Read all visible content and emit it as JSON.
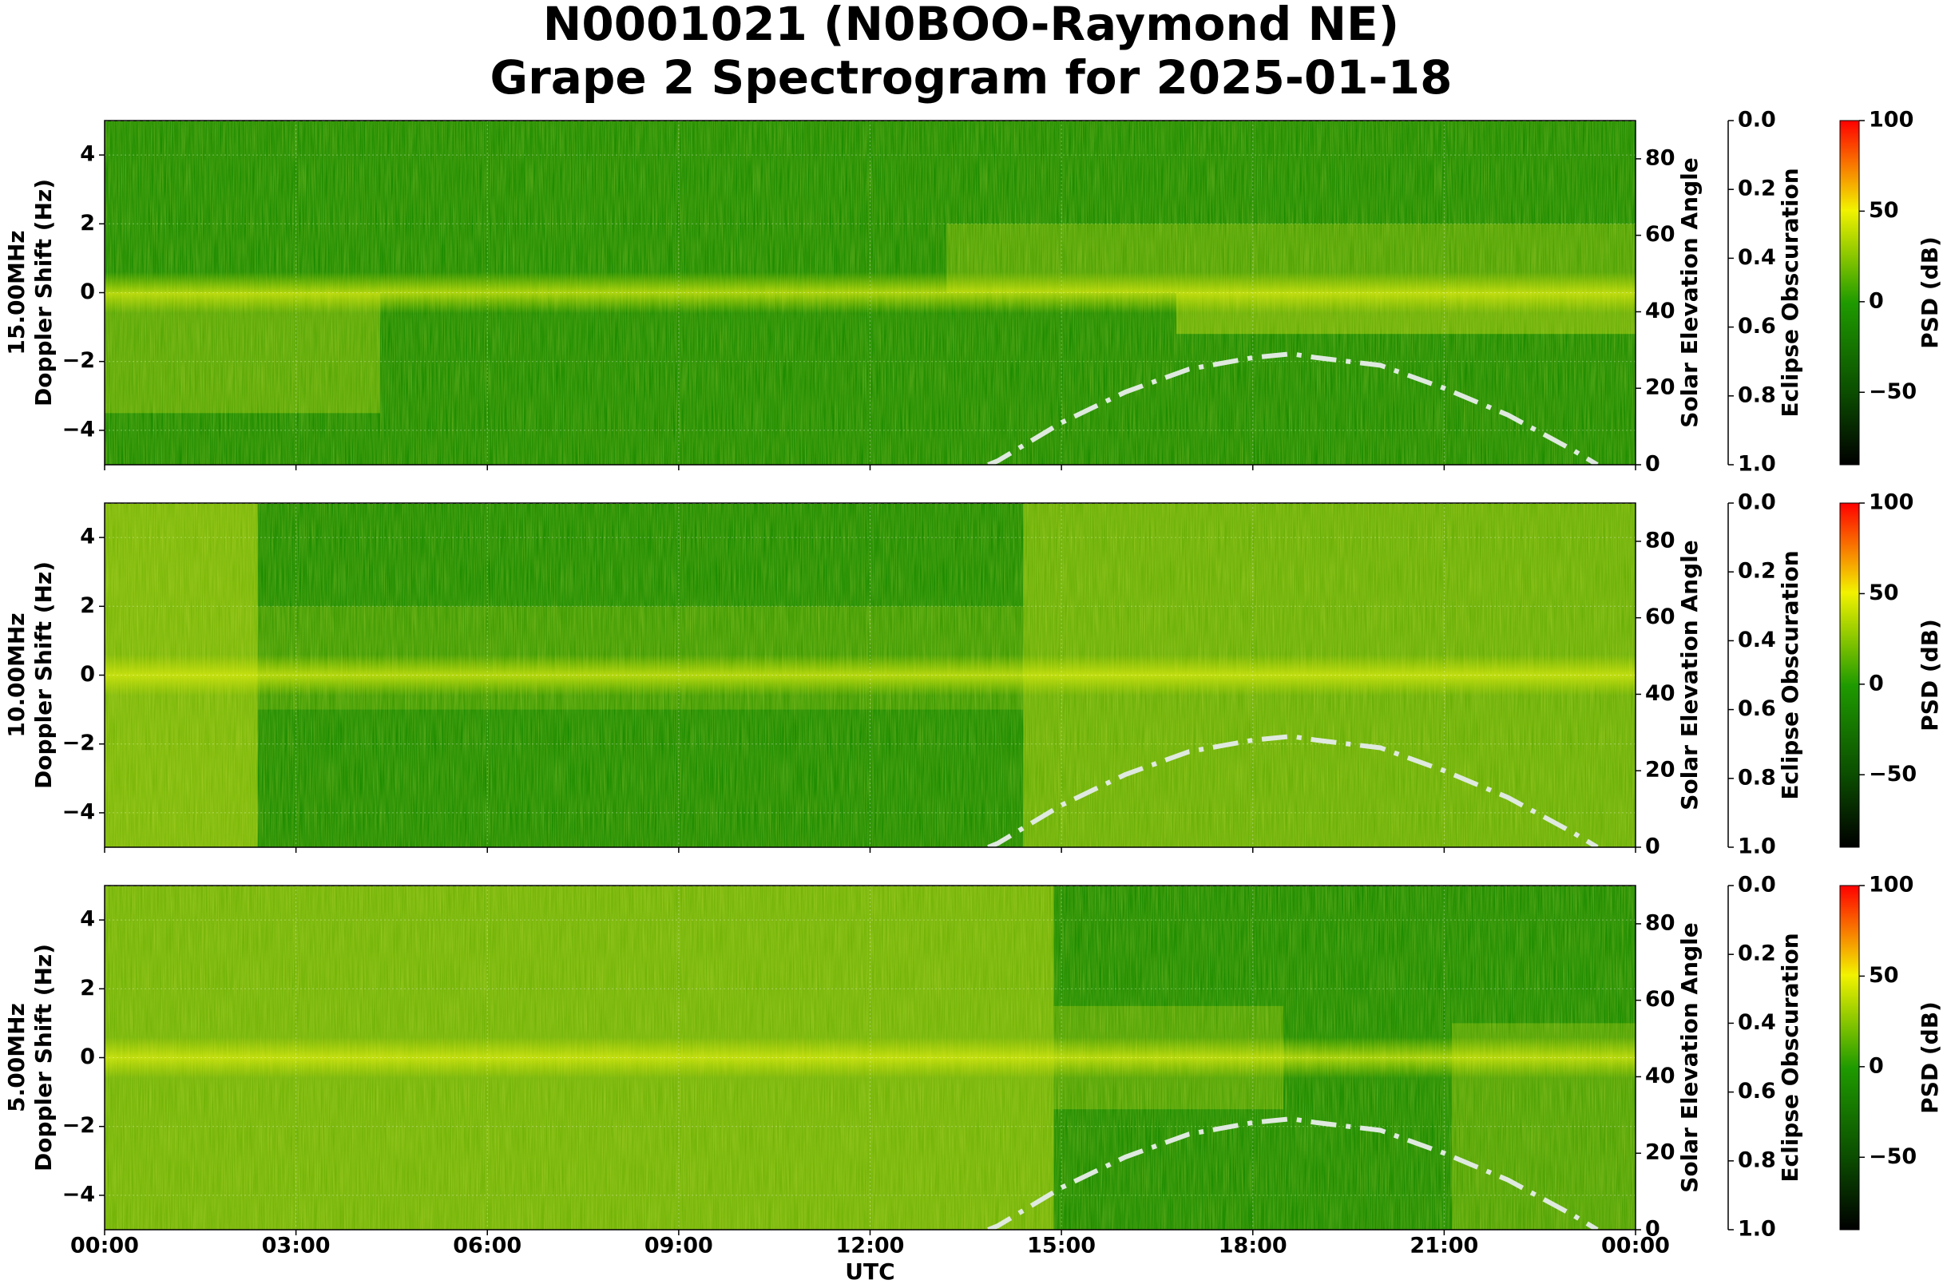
{
  "title": [
    "N0001021 (N0BOO-Raymond NE)",
    "Grape 2 Spectrogram for 2025-01-18"
  ],
  "xaxis": {
    "xlim": [
      0,
      24
    ],
    "xlabel": "UTC",
    "xticks": [
      {
        "value": 0,
        "label": "00:00"
      },
      {
        "value": 3,
        "label": "03:00"
      },
      {
        "value": 6,
        "label": "06:00"
      },
      {
        "value": 9,
        "label": "09:00"
      },
      {
        "value": 12,
        "label": "12:00"
      },
      {
        "value": 15,
        "label": "15:00"
      },
      {
        "value": 18,
        "label": "18:00"
      },
      {
        "value": 21,
        "label": "21:00"
      },
      {
        "value": 24,
        "label": "00:00"
      }
    ]
  },
  "chart_data": [
    {
      "type": "spectrogram",
      "ylabel": [
        "15.00MHz",
        "Doppler Shift (Hz)"
      ],
      "ylim": [
        -5,
        5
      ],
      "yticks": [
        {
          "value": -4,
          "label": "−4"
        },
        {
          "value": -2,
          "label": "−2"
        },
        0,
        2,
        4
      ],
      "y2label": "Solar Elevation Angle",
      "y2lim": [
        0,
        90
      ],
      "y2ticks": [
        0,
        20,
        40,
        60,
        80
      ],
      "y3label": "Eclipse Obscuration",
      "y3lim": [
        1,
        0
      ],
      "y3ticks": [
        {
          "value": 0,
          "label": "0.0"
        },
        0.2,
        0.4,
        0.6,
        0.8,
        {
          "value": 1,
          "label": "1.0"
        }
      ],
      "colorbar": {
        "label": "PSD (dB)",
        "lim": [
          -90,
          100
        ],
        "ticks": [
          {
            "value": -50,
            "label": "−50"
          },
          0,
          50,
          100
        ]
      },
      "elevation": {
        "axis": "y2",
        "color": "#dfe9df",
        "x": [
          13.85,
          14,
          15,
          16,
          17,
          18,
          18.6,
          19,
          20,
          21,
          22,
          23,
          23.4
        ],
        "values": [
          0,
          1,
          11,
          19,
          25,
          28,
          29,
          28,
          26,
          20,
          13,
          4,
          0
        ]
      },
      "obscuration": {
        "axis": "y3",
        "x": [
          0,
          24
        ],
        "values": [
          0,
          0
        ]
      }
    },
    {
      "type": "spectrogram",
      "ylabel": [
        "10.00MHz",
        "Doppler Shift (Hz)"
      ],
      "ylim": [
        -5,
        5
      ],
      "yticks": [
        {
          "value": -4,
          "label": "−4"
        },
        {
          "value": -2,
          "label": "−2"
        },
        0,
        2,
        4
      ],
      "y2label": "Solar Elevation Angle",
      "y2lim": [
        0,
        90
      ],
      "y2ticks": [
        0,
        20,
        40,
        60,
        80
      ],
      "y3label": "Eclipse Obscuration",
      "y3lim": [
        1,
        0
      ],
      "y3ticks": [
        {
          "value": 0,
          "label": "0.0"
        },
        0.2,
        0.4,
        0.6,
        0.8,
        {
          "value": 1,
          "label": "1.0"
        }
      ],
      "colorbar": {
        "label": "PSD (dB)",
        "lim": [
          -90,
          100
        ],
        "ticks": [
          {
            "value": -50,
            "label": "−50"
          },
          0,
          50,
          100
        ]
      },
      "elevation": {
        "axis": "y2",
        "color": "#dfe9df",
        "x": [
          13.85,
          14,
          15,
          16,
          17,
          18,
          18.6,
          19,
          20,
          21,
          22,
          23,
          23.4
        ],
        "values": [
          0,
          1,
          11,
          19,
          25,
          28,
          29,
          28,
          26,
          20,
          13,
          4,
          0
        ]
      },
      "obscuration": {
        "axis": "y3",
        "x": [
          0,
          24
        ],
        "values": [
          0,
          0
        ]
      }
    },
    {
      "type": "spectrogram",
      "ylabel": [
        "5.00MHz",
        "Doppler Shift (Hz)"
      ],
      "ylim": [
        -5,
        5
      ],
      "yticks": [
        {
          "value": -4,
          "label": "−4"
        },
        {
          "value": -2,
          "label": "−2"
        },
        0,
        2,
        4
      ],
      "y2label": "Solar Elevation Angle",
      "y2lim": [
        0,
        90
      ],
      "y2ticks": [
        0,
        20,
        40,
        60,
        80
      ],
      "y3label": "Eclipse Obscuration",
      "y3lim": [
        1,
        0
      ],
      "y3ticks": [
        {
          "value": 0,
          "label": "0.0"
        },
        0.2,
        0.4,
        0.6,
        0.8,
        {
          "value": 1,
          "label": "1.0"
        }
      ],
      "colorbar": {
        "label": "PSD (dB)",
        "lim": [
          -90,
          100
        ],
        "ticks": [
          {
            "value": -50,
            "label": "−50"
          },
          0,
          50,
          100
        ]
      },
      "elevation": {
        "axis": "y2",
        "color": "#dfe9df",
        "x": [
          13.85,
          14,
          15,
          16,
          17,
          18,
          18.6,
          19,
          20,
          21,
          22,
          23,
          23.4
        ],
        "values": [
          0,
          1,
          11,
          19,
          25,
          28,
          29,
          28,
          26,
          20,
          13,
          4,
          0
        ]
      },
      "obscuration": {
        "axis": "y3",
        "x": [
          0,
          24
        ],
        "values": [
          0,
          0
        ]
      }
    }
  ]
}
